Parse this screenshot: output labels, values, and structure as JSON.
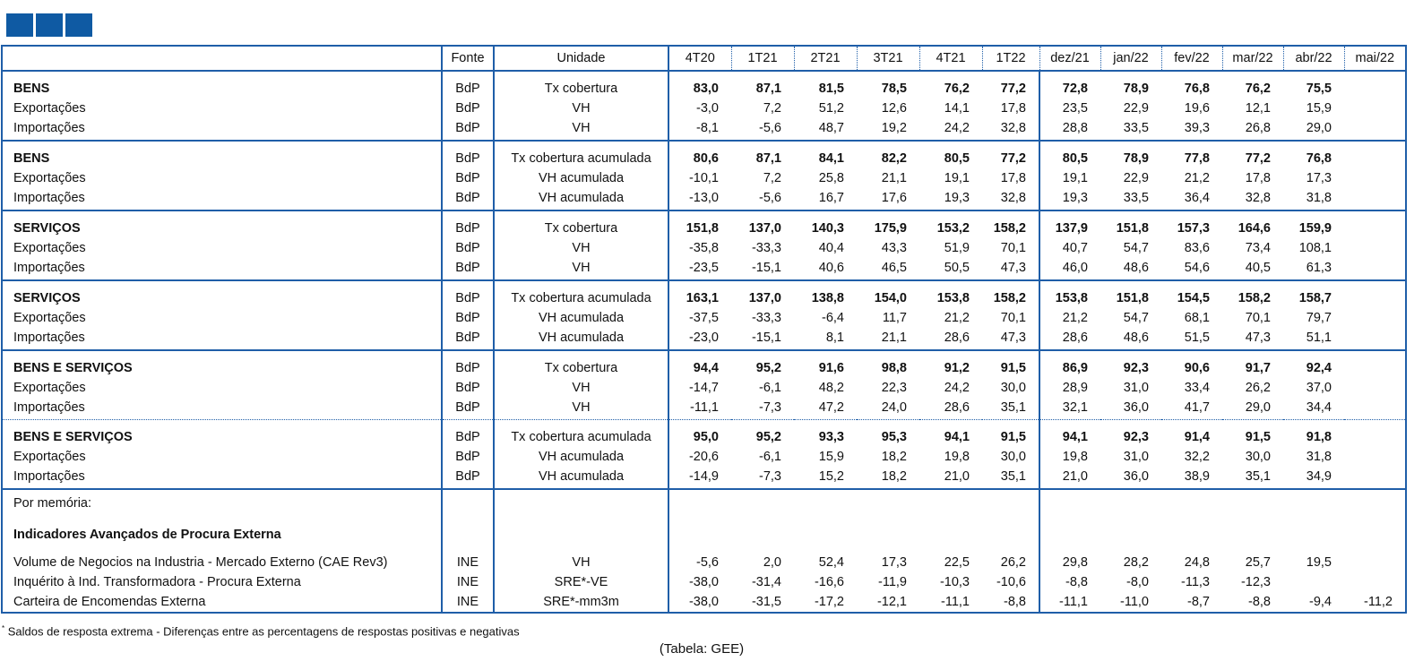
{
  "header": {
    "fonte": "Fonte",
    "unidade": "Unidade",
    "periods": [
      "4T20",
      "1T21",
      "2T21",
      "3T21",
      "4T21",
      "1T22",
      "dez/21",
      "jan/22",
      "fev/22",
      "mar/22",
      "abr/22",
      "mai/22"
    ]
  },
  "groups": [
    {
      "sep": "solid",
      "rows": [
        {
          "label": "BENS",
          "bold": true,
          "fonte": "BdP",
          "unit": "Tx cobertura",
          "values": [
            "83,0",
            "87,1",
            "81,5",
            "78,5",
            "76,2",
            "77,2",
            "72,8",
            "78,9",
            "76,8",
            "76,2",
            "75,5",
            ""
          ]
        },
        {
          "label": "Exportações",
          "bold": false,
          "fonte": "BdP",
          "unit": "VH",
          "values": [
            "-3,0",
            "7,2",
            "51,2",
            "12,6",
            "14,1",
            "17,8",
            "23,5",
            "22,9",
            "19,6",
            "12,1",
            "15,9",
            ""
          ]
        },
        {
          "label": "Importações",
          "bold": false,
          "fonte": "BdP",
          "unit": "VH",
          "values": [
            "-8,1",
            "-5,6",
            "48,7",
            "19,2",
            "24,2",
            "32,8",
            "28,8",
            "33,5",
            "39,3",
            "26,8",
            "29,0",
            ""
          ]
        }
      ]
    },
    {
      "sep": "solid",
      "rows": [
        {
          "label": "BENS",
          "bold": true,
          "fonte": "BdP",
          "unit": "Tx cobertura acumulada",
          "values": [
            "80,6",
            "87,1",
            "84,1",
            "82,2",
            "80,5",
            "77,2",
            "80,5",
            "78,9",
            "77,8",
            "77,2",
            "76,8",
            ""
          ]
        },
        {
          "label": "Exportações",
          "bold": false,
          "fonte": "BdP",
          "unit": "VH acumulada",
          "values": [
            "-10,1",
            "7,2",
            "25,8",
            "21,1",
            "19,1",
            "17,8",
            "19,1",
            "22,9",
            "21,2",
            "17,8",
            "17,3",
            ""
          ]
        },
        {
          "label": "Importações",
          "bold": false,
          "fonte": "BdP",
          "unit": "VH acumulada",
          "values": [
            "-13,0",
            "-5,6",
            "16,7",
            "17,6",
            "19,3",
            "32,8",
            "19,3",
            "33,5",
            "36,4",
            "32,8",
            "31,8",
            ""
          ]
        }
      ]
    },
    {
      "sep": "solid",
      "rows": [
        {
          "label": "SERVIÇOS",
          "bold": true,
          "fonte": "BdP",
          "unit": "Tx cobertura",
          "values": [
            "151,8",
            "137,0",
            "140,3",
            "175,9",
            "153,2",
            "158,2",
            "137,9",
            "151,8",
            "157,3",
            "164,6",
            "159,9",
            ""
          ]
        },
        {
          "label": "Exportações",
          "bold": false,
          "fonte": "BdP",
          "unit": "VH",
          "values": [
            "-35,8",
            "-33,3",
            "40,4",
            "43,3",
            "51,9",
            "70,1",
            "40,7",
            "54,7",
            "83,6",
            "73,4",
            "108,1",
            ""
          ]
        },
        {
          "label": "Importações",
          "bold": false,
          "fonte": "BdP",
          "unit": "VH",
          "values": [
            "-23,5",
            "-15,1",
            "40,6",
            "46,5",
            "50,5",
            "47,3",
            "46,0",
            "48,6",
            "54,6",
            "40,5",
            "61,3",
            ""
          ]
        }
      ]
    },
    {
      "sep": "solid",
      "rows": [
        {
          "label": "SERVIÇOS",
          "bold": true,
          "fonte": "BdP",
          "unit": "Tx cobertura acumulada",
          "values": [
            "163,1",
            "137,0",
            "138,8",
            "154,0",
            "153,8",
            "158,2",
            "153,8",
            "151,8",
            "154,5",
            "158,2",
            "158,7",
            ""
          ]
        },
        {
          "label": "Exportações",
          "bold": false,
          "fonte": "BdP",
          "unit": "VH acumulada",
          "values": [
            "-37,5",
            "-33,3",
            "-6,4",
            "11,7",
            "21,2",
            "70,1",
            "21,2",
            "54,7",
            "68,1",
            "70,1",
            "79,7",
            ""
          ]
        },
        {
          "label": "Importações",
          "bold": false,
          "fonte": "BdP",
          "unit": "VH acumulada",
          "values": [
            "-23,0",
            "-15,1",
            "8,1",
            "21,1",
            "28,6",
            "47,3",
            "28,6",
            "48,6",
            "51,5",
            "47,3",
            "51,1",
            ""
          ]
        }
      ]
    },
    {
      "sep": "dot",
      "rows": [
        {
          "label": "BENS E SERVIÇOS",
          "bold": true,
          "fonte": "BdP",
          "unit": "Tx cobertura",
          "values": [
            "94,4",
            "95,2",
            "91,6",
            "98,8",
            "91,2",
            "91,5",
            "86,9",
            "92,3",
            "90,6",
            "91,7",
            "92,4",
            ""
          ]
        },
        {
          "label": "Exportações",
          "bold": false,
          "fonte": "BdP",
          "unit": "VH",
          "values": [
            "-14,7",
            "-6,1",
            "48,2",
            "22,3",
            "24,2",
            "30,0",
            "28,9",
            "31,0",
            "33,4",
            "26,2",
            "37,0",
            ""
          ]
        },
        {
          "label": "Importações",
          "bold": false,
          "fonte": "BdP",
          "unit": "VH",
          "values": [
            "-11,1",
            "-7,3",
            "47,2",
            "24,0",
            "28,6",
            "35,1",
            "32,1",
            "36,0",
            "41,7",
            "29,0",
            "34,4",
            ""
          ]
        }
      ]
    },
    {
      "sep": "solid",
      "rows": [
        {
          "label": "BENS E SERVIÇOS",
          "bold": true,
          "fonte": "BdP",
          "unit": "Tx cobertura acumulada",
          "values": [
            "95,0",
            "95,2",
            "93,3",
            "95,3",
            "94,1",
            "91,5",
            "94,1",
            "92,3",
            "91,4",
            "91,5",
            "91,8",
            ""
          ]
        },
        {
          "label": "Exportações",
          "bold": false,
          "fonte": "BdP",
          "unit": "VH acumulada",
          "values": [
            "-20,6",
            "-6,1",
            "15,9",
            "18,2",
            "19,8",
            "30,0",
            "19,8",
            "31,0",
            "32,2",
            "30,0",
            "31,8",
            ""
          ]
        },
        {
          "label": "Importações",
          "bold": false,
          "fonte": "BdP",
          "unit": "VH acumulada",
          "values": [
            "-14,9",
            "-7,3",
            "15,2",
            "18,2",
            "21,0",
            "35,1",
            "21,0",
            "36,0",
            "38,9",
            "35,1",
            "34,9",
            ""
          ]
        }
      ]
    }
  ],
  "memo": {
    "title": "Por memória:",
    "section": "Indicadores Avançados de Procura Externa",
    "rows": [
      {
        "label": "Volume de Negocios na Industria - Mercado Externo (CAE Rev3)",
        "fonte": "INE",
        "unit": "VH",
        "values": [
          "-5,6",
          "2,0",
          "52,4",
          "17,3",
          "22,5",
          "26,2",
          "29,8",
          "28,2",
          "24,8",
          "25,7",
          "19,5",
          ""
        ]
      },
      {
        "label": "Inquérito à Ind. Transformadora - Procura Externa",
        "fonte": "INE",
        "unit": "SRE*-VE",
        "values": [
          "-38,0",
          "-31,4",
          "-16,6",
          "-11,9",
          "-10,3",
          "-10,6",
          "-8,8",
          "-8,0",
          "-11,3",
          "-12,3",
          "",
          ""
        ]
      },
      {
        "label": "Carteira de Encomendas Externa",
        "fonte": "INE",
        "unit": "SRE*-mm3m",
        "values": [
          "-38,0",
          "-31,5",
          "-17,2",
          "-12,1",
          "-11,1",
          "-8,8",
          "-11,1",
          "-11,0",
          "-8,7",
          "-8,8",
          "-9,4",
          "-11,2"
        ]
      }
    ]
  },
  "footnote": {
    "marker": "*",
    "text": "Saldos de resposta extrema - Diferenças entre as percentagens de respostas positivas e negativas"
  },
  "source": "(Tabela: GEE)"
}
